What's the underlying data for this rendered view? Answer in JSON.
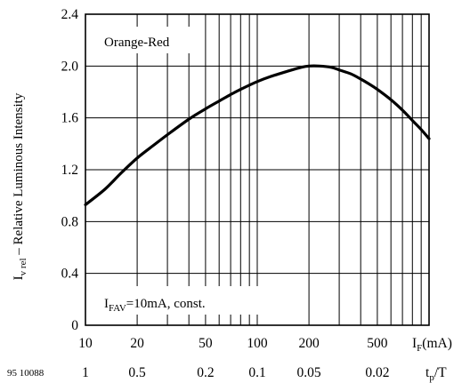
{
  "chart_data": {
    "type": "line",
    "title": "",
    "series_label": "Orange-Red",
    "condition_label": {
      "main": "I",
      "sub": "FAV",
      "rest": "=10mA, const."
    },
    "figure_id": "95 10088",
    "ylabel": {
      "prefix": "I",
      "sub": "v rel",
      "rest": " – Relative Luminous Intensity"
    },
    "xlabel": {
      "prefix": "I",
      "sub": "F",
      "rest": "(mA)"
    },
    "x2label": {
      "prefix": "t",
      "sub": "p",
      "rest": "/T"
    },
    "x_scale": "log",
    "xlim": [
      10,
      1000
    ],
    "ylim": [
      0,
      2.4
    ],
    "grid": true,
    "x_ticks": [
      {
        "value": 10,
        "label": "10",
        "duty": "1"
      },
      {
        "value": 20,
        "label": "20",
        "duty": "0.5"
      },
      {
        "value": 50,
        "label": "50",
        "duty": "0.2"
      },
      {
        "value": 70,
        "label": "",
        "duty": ""
      },
      {
        "value": 100,
        "label": "100",
        "duty": "0.1"
      },
      {
        "value": 200,
        "label": "200",
        "duty": "0.05"
      },
      {
        "value": 500,
        "label": "500",
        "duty": "0.02"
      }
    ],
    "y_ticks": [
      0,
      0.4,
      0.8,
      1.2,
      1.6,
      2.0,
      2.4
    ],
    "y_tick_labels": [
      "0",
      "0.4",
      "0.8",
      "1.2",
      "1.6",
      "2.0",
      "2.4"
    ],
    "series": [
      {
        "name": "Orange-Red",
        "x": [
          10,
          13,
          16,
          20,
          25,
          30,
          40,
          50,
          60,
          70,
          80,
          100,
          120,
          150,
          180,
          200,
          230,
          270,
          300,
          350,
          400,
          450,
          500,
          600,
          700,
          800,
          900,
          1000
        ],
        "y": [
          0.93,
          1.05,
          1.17,
          1.29,
          1.39,
          1.47,
          1.59,
          1.67,
          1.73,
          1.78,
          1.82,
          1.88,
          1.92,
          1.96,
          1.99,
          2.0,
          2.0,
          1.99,
          1.97,
          1.94,
          1.9,
          1.86,
          1.82,
          1.74,
          1.66,
          1.58,
          1.51,
          1.44
        ]
      }
    ]
  }
}
